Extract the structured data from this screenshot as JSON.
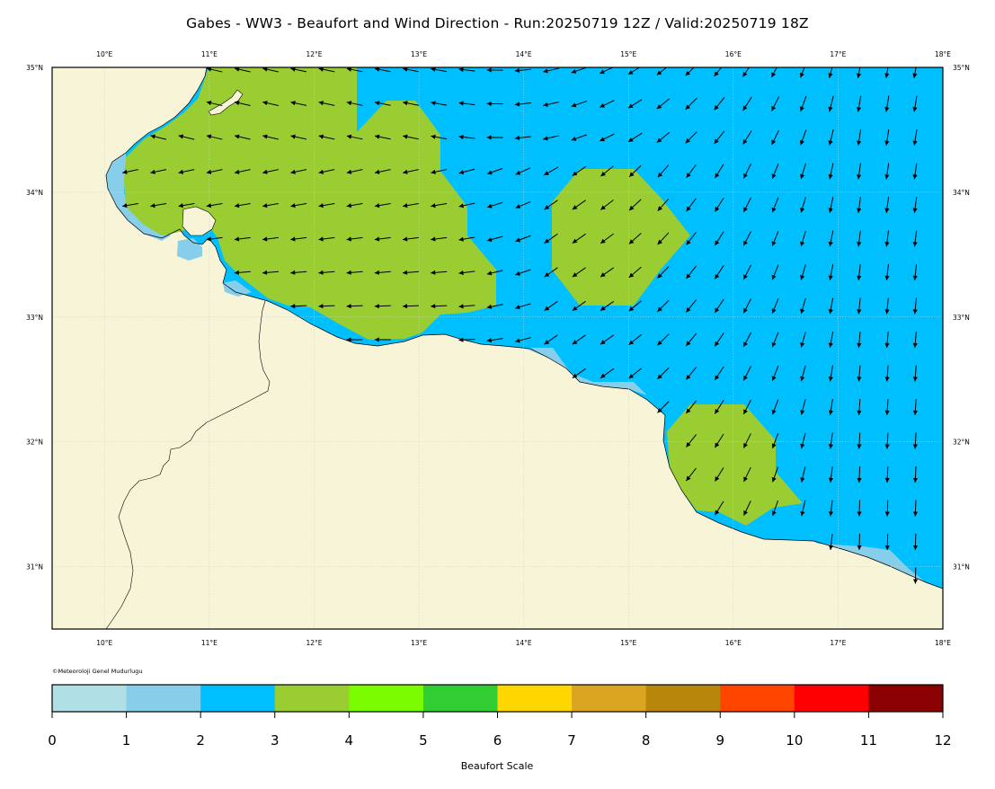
{
  "title": "Gabes - WW3 - Beaufort and Wind Direction - Run:20250719 12Z / Valid:20250719 18Z",
  "credit": "©Meteoroloji Genel Mudurlugu",
  "map": {
    "lon_range": [
      9.5,
      18.0
    ],
    "lat_range": [
      30.5,
      35.0
    ],
    "lon_ticks": [
      "10°E",
      "11°E",
      "12°E",
      "13°E",
      "14°E",
      "15°E",
      "16°E",
      "17°E",
      "18°E"
    ],
    "lat_ticks": [
      "35°N",
      "34°N",
      "33°N",
      "32°N",
      "31°N"
    ],
    "land_color": "#f7f4d8",
    "sea_color_beaufort_2_3": "#00bfff",
    "sea_color_beaufort_3_4": "#9acd32",
    "sea_color_beaufort_1_2": "#87ceeb",
    "wind_direction_summary": "westward winds near the Tunisian coast turning to south/southwestward toward the east",
    "gridlines": true
  },
  "colorbar": {
    "label": "Beaufort Scale",
    "ticks": [
      "0",
      "1",
      "2",
      "3",
      "4",
      "5",
      "6",
      "7",
      "8",
      "9",
      "10",
      "11",
      "12"
    ],
    "colors": [
      "#b0e0e6",
      "#87ceeb",
      "#00bfff",
      "#9acd32",
      "#7cfc00",
      "#32cd32",
      "#ffd700",
      "#daa520",
      "#b8860b",
      "#ff4500",
      "#ff0000",
      "#8b0000"
    ]
  }
}
